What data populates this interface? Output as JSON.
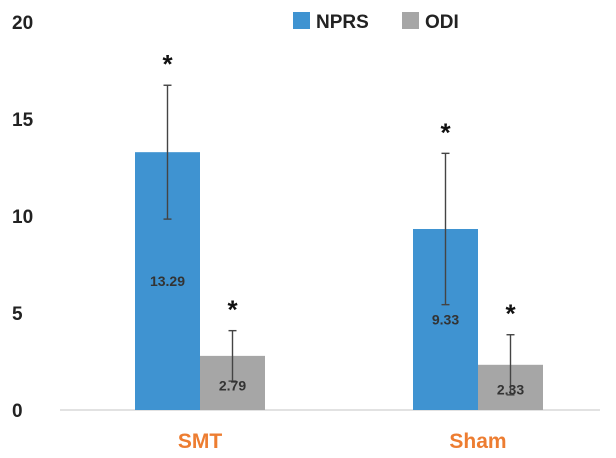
{
  "chart_data": {
    "type": "bar",
    "categories": [
      "SMT",
      "Sham"
    ],
    "series": [
      {
        "name": "NPRS",
        "values": [
          13.29,
          9.33
        ],
        "error": [
          3.45,
          3.9
        ],
        "color": "#3f93d1"
      },
      {
        "name": "ODI",
        "values": [
          2.79,
          2.33
        ],
        "error": [
          1.3,
          1.55
        ],
        "color": "#a6a6a6"
      }
    ],
    "data_labels": [
      [
        "13.29",
        "9.33"
      ],
      [
        "2.79",
        "2.33"
      ]
    ],
    "significance_marker": "*",
    "ylim": [
      0,
      20
    ],
    "yticks": [
      "0",
      "5",
      "10",
      "15",
      "20"
    ],
    "xlabel": "",
    "ylabel": "",
    "title": "",
    "legend_position": "top",
    "category_label_color": "#ed7d31",
    "grid": false
  }
}
